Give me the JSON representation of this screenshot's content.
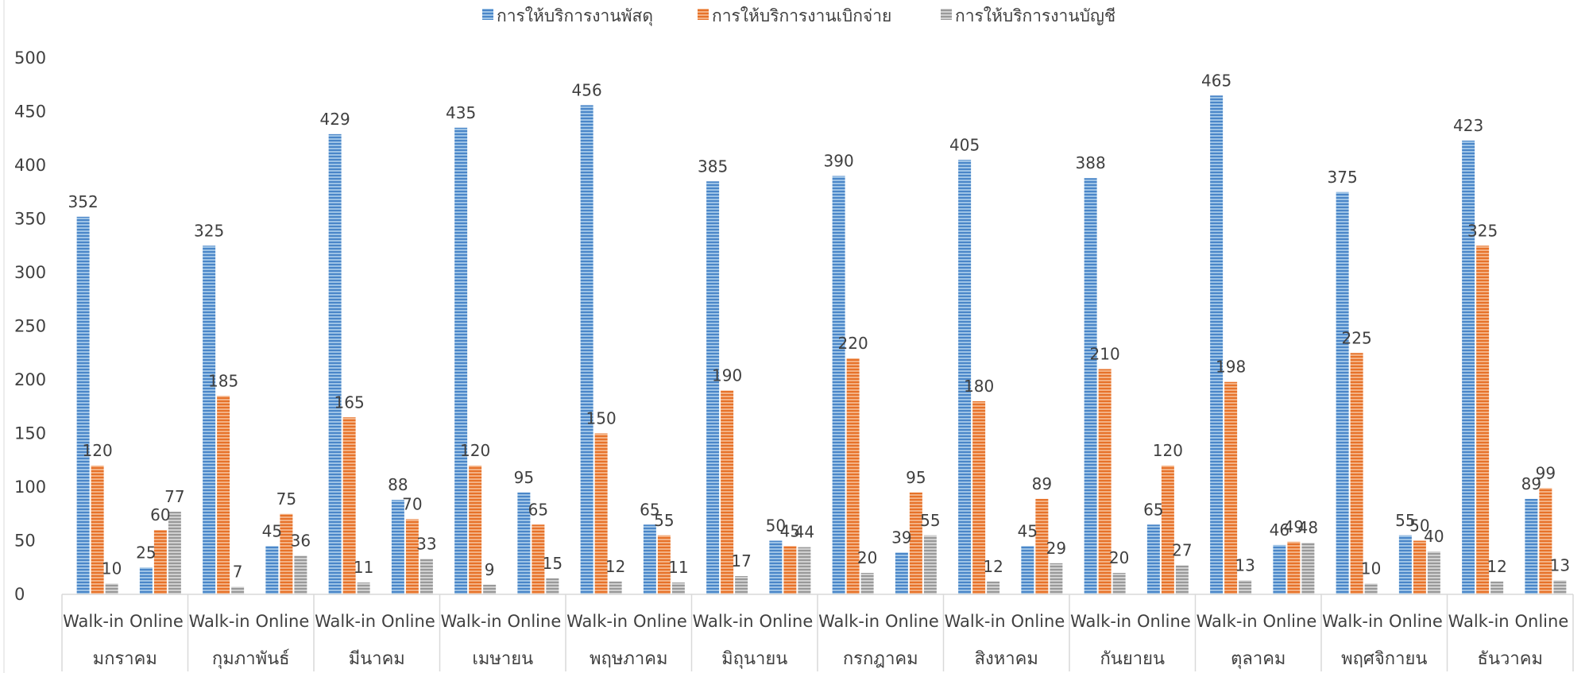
{
  "chart_data": {
    "type": "bar",
    "legend_position": "top",
    "grid": false,
    "ylim": [
      0,
      500
    ],
    "yticks": [
      "0",
      "50",
      "100",
      "150",
      "200",
      "250",
      "300",
      "350",
      "400",
      "450",
      "500"
    ],
    "months": [
      "มกราคม",
      "กุมภาพันธ์",
      "มีนาคม",
      "เมษายน",
      "พฤษภาคม",
      "มิถุนายน",
      "กรกฎาคม",
      "สิงหาคม",
      "กันยายน",
      "ตุลาคม",
      "พฤศจิกายน",
      "ธันวาคม"
    ],
    "channels": [
      "Walk-in",
      "Online"
    ],
    "series": [
      {
        "name": "การให้บริการงานพัสดุ",
        "color": "#5B9BD5",
        "values": [
          352,
          25,
          325,
          45,
          429,
          88,
          435,
          95,
          456,
          65,
          385,
          50,
          390,
          39,
          405,
          45,
          388,
          65,
          465,
          46,
          375,
          55,
          423,
          89
        ]
      },
      {
        "name": "การให้บริการงานเบิกจ่าย",
        "color": "#ED7D31",
        "values": [
          120,
          60,
          185,
          75,
          165,
          70,
          120,
          65,
          150,
          55,
          190,
          45,
          220,
          95,
          180,
          89,
          210,
          120,
          198,
          49,
          225,
          50,
          325,
          99
        ]
      },
      {
        "name": "การให้บริการงานบัญชี",
        "color": "#A5A5A5",
        "values": [
          10,
          77,
          7,
          36,
          11,
          33,
          9,
          15,
          12,
          11,
          17,
          44,
          20,
          55,
          12,
          29,
          20,
          27,
          13,
          48,
          10,
          40,
          12,
          13
        ]
      }
    ]
  }
}
